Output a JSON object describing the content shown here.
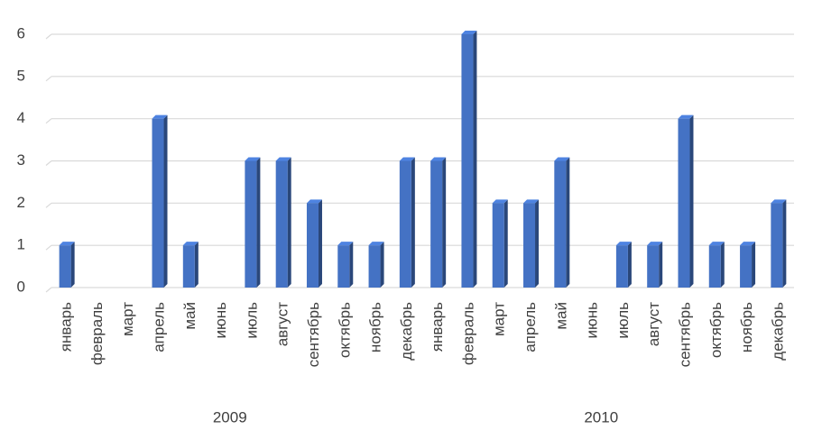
{
  "chart_data": {
    "type": "bar3d",
    "groups": [
      {
        "label": "2009",
        "categories": [
          "январь",
          "февраль",
          "март",
          "апрель",
          "май",
          "июнь",
          "июль",
          "август",
          "сентябрь",
          "октябрь",
          "ноябрь",
          "декабрь"
        ],
        "values": [
          1,
          0,
          0,
          4,
          1,
          0,
          3,
          3,
          2,
          1,
          1,
          3
        ]
      },
      {
        "label": "2010",
        "categories": [
          "январь",
          "февраль",
          "март",
          "апрель",
          "май",
          "июнь",
          "июль",
          "август",
          "сентябрь",
          "октябрь",
          "ноябрь",
          "декабрь"
        ],
        "values": [
          3,
          6,
          2,
          2,
          3,
          0,
          1,
          1,
          4,
          1,
          1,
          2
        ]
      }
    ],
    "color": "#4472c4",
    "ylim": [
      0,
      6
    ],
    "yticks": [
      0,
      1,
      2,
      3,
      4,
      5,
      6
    ],
    "grid": true
  }
}
